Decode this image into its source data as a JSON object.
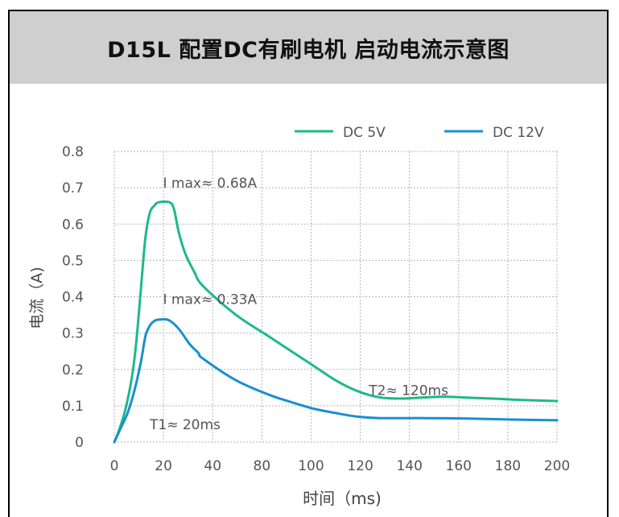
{
  "title": "D15L 配置DC有刷电机 启动电流示意图",
  "chart_data": {
    "type": "line",
    "title": "D15L 配置DC有刷电机 启动电流示意图",
    "xlabel": "时间（ms)",
    "ylabel": "电流（A)",
    "x_tick_labels": [
      "0",
      "20",
      "40",
      "80",
      "100",
      "120",
      "140",
      "160",
      "180",
      "200"
    ],
    "y_ticks": [
      0,
      0.1,
      0.2,
      0.3,
      0.4,
      0.5,
      0.6,
      0.7,
      0.8
    ],
    "y_tick_labels": [
      "0",
      "0.1",
      "0.2",
      "0.3",
      "0.4",
      "0.5",
      "0.6",
      "0.7",
      "0.8"
    ],
    "ylim": [
      0,
      0.8
    ],
    "grid": true,
    "legend_position": "top-right",
    "series": [
      {
        "name": "DC 5V",
        "color": "#1db98a",
        "points": [
          [
            0,
            0
          ],
          [
            2,
            0.03
          ],
          [
            5,
            0.09
          ],
          [
            8,
            0.18
          ],
          [
            10,
            0.28
          ],
          [
            12,
            0.42
          ],
          [
            14,
            0.56
          ],
          [
            16,
            0.63
          ],
          [
            18,
            0.65
          ],
          [
            20,
            0.66
          ],
          [
            25,
            0.66
          ],
          [
            27,
            0.64
          ],
          [
            29,
            0.58
          ],
          [
            32,
            0.52
          ],
          [
            36,
            0.47
          ],
          [
            40,
            0.43
          ],
          [
            55,
            0.35
          ],
          [
            70,
            0.29
          ],
          [
            80,
            0.25
          ],
          [
            90,
            0.21
          ],
          [
            100,
            0.17
          ],
          [
            110,
            0.14
          ],
          [
            120,
            0.123
          ],
          [
            130,
            0.12
          ],
          [
            140,
            0.123
          ],
          [
            150,
            0.125
          ],
          [
            160,
            0.122
          ],
          [
            170,
            0.12
          ],
          [
            180,
            0.117
          ],
          [
            190,
            0.115
          ],
          [
            200,
            0.113
          ]
        ]
      },
      {
        "name": "DC 12V",
        "color": "#1a8fd0",
        "points": [
          [
            0,
            0
          ],
          [
            3,
            0.04
          ],
          [
            6,
            0.08
          ],
          [
            9,
            0.14
          ],
          [
            12,
            0.22
          ],
          [
            14,
            0.29
          ],
          [
            16,
            0.32
          ],
          [
            18,
            0.333
          ],
          [
            20,
            0.337
          ],
          [
            24,
            0.337
          ],
          [
            27,
            0.325
          ],
          [
            30,
            0.305
          ],
          [
            34,
            0.27
          ],
          [
            38,
            0.245
          ],
          [
            40,
            0.23
          ],
          [
            55,
            0.17
          ],
          [
            70,
            0.13
          ],
          [
            80,
            0.11
          ],
          [
            90,
            0.092
          ],
          [
            100,
            0.08
          ],
          [
            110,
            0.07
          ],
          [
            120,
            0.066
          ],
          [
            140,
            0.066
          ],
          [
            160,
            0.065
          ],
          [
            180,
            0.062
          ],
          [
            200,
            0.06
          ]
        ]
      }
    ],
    "annotations": [
      {
        "text": "I max≈ 0.68A",
        "x": 22,
        "y": 0.7
      },
      {
        "text": "I max≈ 0.33A",
        "x": 22,
        "y": 0.38
      },
      {
        "text": "T2≈ 120ms",
        "x": 115,
        "y": 0.13
      },
      {
        "text": "T1≈ 20ms",
        "x": 16,
        "y": 0.035
      }
    ]
  }
}
